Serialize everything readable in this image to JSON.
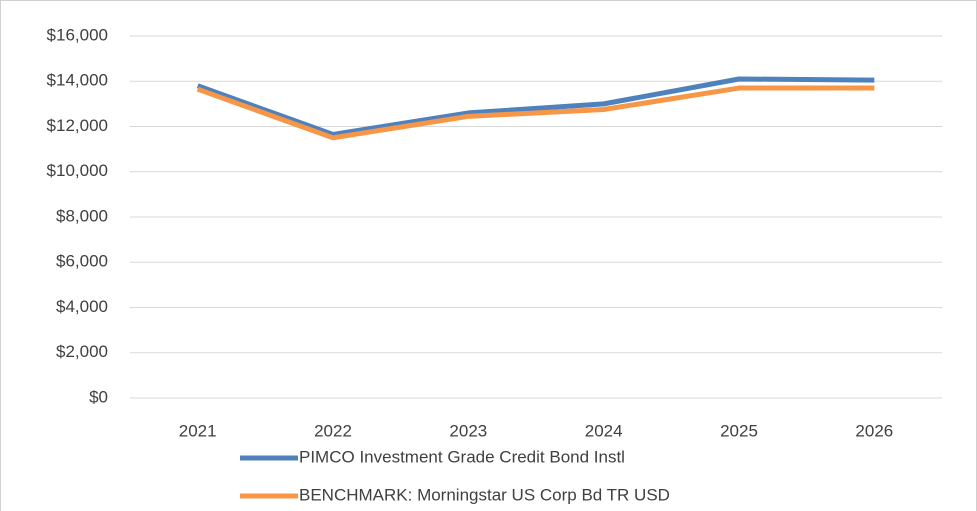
{
  "chart_data": {
    "type": "line",
    "categories": [
      "2021",
      "2022",
      "2023",
      "2024",
      "2025",
      "2026"
    ],
    "series": [
      {
        "name": "PIMCO Investment Grade Credit Bond Instl",
        "color": "#4f81bd",
        "values": [
          13800,
          11650,
          12600,
          13000,
          14100,
          14050
        ]
      },
      {
        "name": "BENCHMARK: Morningstar US Corp Bd TR USD",
        "color": "#f79646",
        "values": [
          13650,
          11500,
          12450,
          12750,
          13700,
          13700
        ]
      }
    ],
    "ylim": [
      0,
      16000
    ],
    "yticks": [
      {
        "value": 0,
        "label": "$0"
      },
      {
        "value": 2000,
        "label": "$2,000"
      },
      {
        "value": 4000,
        "label": "$4,000"
      },
      {
        "value": 6000,
        "label": "$6,000"
      },
      {
        "value": 8000,
        "label": "$8,000"
      },
      {
        "value": 10000,
        "label": "$10,000"
      },
      {
        "value": 12000,
        "label": "$12,000"
      },
      {
        "value": 14000,
        "label": "$14,000"
      },
      {
        "value": 16000,
        "label": "$16,000"
      }
    ],
    "grid": true,
    "legend": "bottom"
  }
}
